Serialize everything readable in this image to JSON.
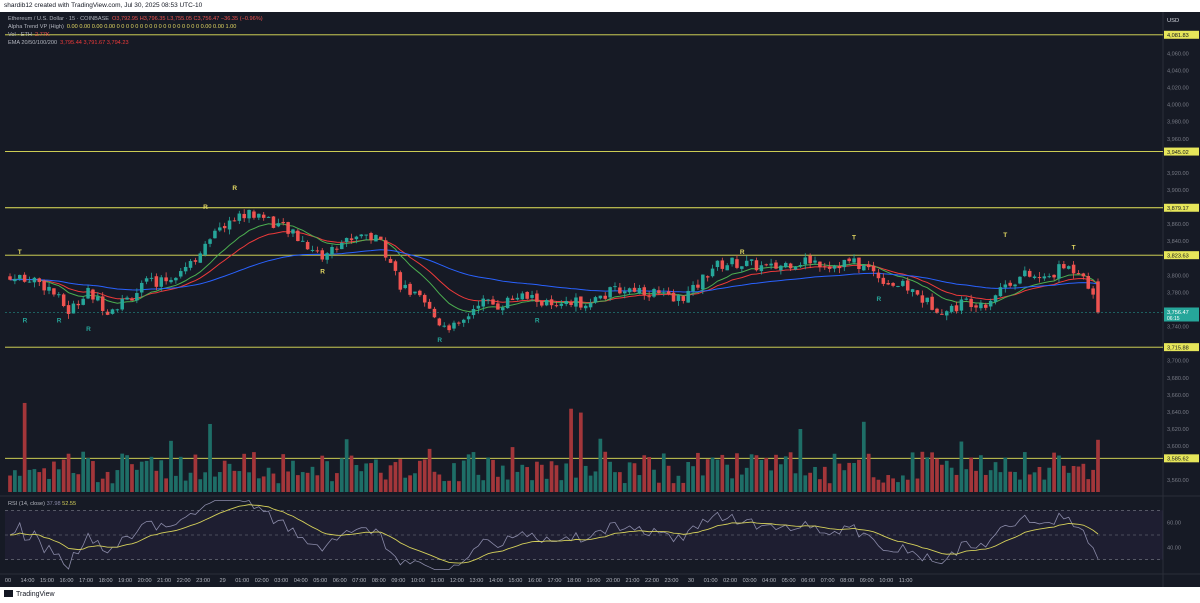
{
  "header": {
    "text": "shardib12 created with TradingView.com, Jul 30, 2025 08:53 UTC-10"
  },
  "footer": {
    "brand": "TradingView"
  },
  "legend": {
    "line1": {
      "label": "Ethereum / U.S. Dollar · 15 · COINBASE",
      "ohlc": "O3,792.95 H3,796.35 L3,755.05 C3,756.47 −36.35 (−0.96%)"
    },
    "line2": {
      "label": "Alpha Trend VP (High)",
      "values": "0.00 0.00 0.00 0.00 0 0 0 0 0 0 0 0 0 0 0 0 0 0 0 0 0 0 0.00 0.00 1.00"
    },
    "line3": {
      "label": "Vol · ETH",
      "values": "2.77K"
    },
    "line4": {
      "label": "EMA 20/50/100/200",
      "values": "3,795.44 3,791.67 3,794.23"
    }
  },
  "price_axis": {
    "currency": "USD",
    "ticks": [
      "4,060.00",
      "4,040.00",
      "4,020.00",
      "4,000.00",
      "3,980.00",
      "3,960.00",
      "3,920.00",
      "3,900.00",
      "3,880.00",
      "3,860.00",
      "3,840.00",
      "3,800.00",
      "3,780.00",
      "3,740.00",
      "3,700.00",
      "3,680.00",
      "3,660.00",
      "3,640.00",
      "3,620.00",
      "3,600.00",
      "3,560.00"
    ],
    "tick_values": [
      4060,
      4040,
      4020,
      4000,
      3980,
      3960,
      3920,
      3900,
      3880,
      3860,
      3840,
      3800,
      3780,
      3740,
      3700,
      3680,
      3660,
      3640,
      3620,
      3600,
      3560
    ],
    "levels": [
      {
        "label": "4,081.83",
        "value": 4081.83
      },
      {
        "label": "3,945.02",
        "value": 3945.02
      },
      {
        "label": "3,879.17",
        "value": 3879.17
      },
      {
        "label": "3,823.63",
        "value": 3823.63
      },
      {
        "label": "3,715.88",
        "value": 3715.88
      },
      {
        "label": "3,585.62",
        "value": 3585.62
      }
    ],
    "current": {
      "label": "3,756.47",
      "value": 3756.47,
      "countdown": "06:15"
    },
    "price_range": [
      3545,
      4105
    ]
  },
  "time_axis": {
    "labels": [
      "00",
      "14:00",
      "15:00",
      "16:00",
      "17:00",
      "18:00",
      "19:00",
      "20:00",
      "21:00",
      "22:00",
      "23:00",
      "29",
      "01:00",
      "02:00",
      "03:00",
      "04:00",
      "05:00",
      "06:00",
      "07:00",
      "08:00",
      "09:00",
      "10:00",
      "11:00",
      "12:00",
      "13:00",
      "14:00",
      "15:00",
      "16:00",
      "17:00",
      "18:00",
      "19:00",
      "20:00",
      "21:00",
      "22:00",
      "23:00",
      "30",
      "01:00",
      "02:00",
      "03:00",
      "04:00",
      "05:00",
      "06:00",
      "07:00",
      "08:00",
      "09:00",
      "10:00",
      "11:00"
    ]
  },
  "rsi": {
    "label": "RSI (14, close)",
    "value1": "37.98",
    "value2": "52.55",
    "ticks": [
      "60.00",
      "40.00"
    ],
    "tick_values": [
      60,
      40
    ],
    "bands": [
      70,
      50,
      30
    ],
    "range": [
      20,
      80
    ]
  },
  "colors": {
    "bg": "#161a25",
    "up": "#26a69a",
    "down": "#ef5350",
    "upvol": "#1e6e67",
    "downvol": "#a3363a",
    "level": "#e6e65a",
    "ema_fast": "#ef3a3a",
    "ema_mid": "#f5a623",
    "ema_slow": "#2962ff",
    "ema_long": "#4caf50",
    "rsi": "#8a8aa8",
    "rsi_ma": "#d4cf5a",
    "signal": "#e3d862",
    "signal_r": "#26a69a"
  },
  "chart_data": {
    "type": "candlestick",
    "title": "Ethereum / U.S. Dollar · 15 · COINBASE",
    "interval_minutes": 15,
    "start_time": "13:30",
    "close_anchors": [
      [
        0,
        3795
      ],
      [
        4,
        3798
      ],
      [
        8,
        3785
      ],
      [
        12,
        3758
      ],
      [
        16,
        3780
      ],
      [
        20,
        3760
      ],
      [
        24,
        3772
      ],
      [
        28,
        3790
      ],
      [
        32,
        3795
      ],
      [
        36,
        3812
      ],
      [
        40,
        3832
      ],
      [
        44,
        3860
      ],
      [
        48,
        3872
      ],
      [
        52,
        3870
      ],
      [
        56,
        3855
      ],
      [
        60,
        3840
      ],
      [
        64,
        3822
      ],
      [
        68,
        3838
      ],
      [
        72,
        3850
      ],
      [
        76,
        3840
      ],
      [
        80,
        3790
      ],
      [
        84,
        3770
      ],
      [
        88,
        3745
      ],
      [
        92,
        3738
      ],
      [
        96,
        3770
      ],
      [
        100,
        3765
      ],
      [
        104,
        3775
      ],
      [
        108,
        3772
      ],
      [
        112,
        3760
      ],
      [
        116,
        3768
      ],
      [
        120,
        3772
      ],
      [
        124,
        3782
      ],
      [
        128,
        3785
      ],
      [
        132,
        3780
      ],
      [
        136,
        3770
      ],
      [
        140,
        3782
      ],
      [
        144,
        3810
      ],
      [
        148,
        3815
      ],
      [
        152,
        3812
      ],
      [
        156,
        3808
      ],
      [
        160,
        3815
      ],
      [
        164,
        3818
      ],
      [
        168,
        3812
      ],
      [
        172,
        3816
      ],
      [
        176,
        3808
      ],
      [
        180,
        3792
      ],
      [
        184,
        3785
      ],
      [
        188,
        3768
      ],
      [
        192,
        3758
      ],
      [
        196,
        3770
      ],
      [
        200,
        3768
      ],
      [
        204,
        3790
      ],
      [
        208,
        3800
      ],
      [
        212,
        3795
      ],
      [
        216,
        3810
      ],
      [
        220,
        3805
      ],
      [
        223,
        3756.47
      ]
    ],
    "signals": [
      {
        "i": 2,
        "t": "T",
        "p": 3825
      },
      {
        "i": 46,
        "t": "R",
        "p": 3900
      },
      {
        "i": 173,
        "t": "T",
        "p": 3842
      },
      {
        "i": 204,
        "t": "T",
        "p": 3845
      },
      {
        "i": 218,
        "t": "T",
        "p": 3830
      },
      {
        "i": 3,
        "t": "R",
        "p": 3745
      },
      {
        "i": 10,
        "t": "R",
        "p": 3745
      },
      {
        "i": 16,
        "t": "R",
        "p": 3735
      },
      {
        "i": 40,
        "t": "R",
        "p": 3878
      },
      {
        "i": 64,
        "t": "R",
        "p": 3802
      },
      {
        "i": 88,
        "t": "R",
        "p": 3722
      },
      {
        "i": 108,
        "t": "R",
        "p": 3745
      },
      {
        "i": 150,
        "t": "R",
        "p": 3825
      },
      {
        "i": 178,
        "t": "R",
        "p": 3770
      }
    ]
  }
}
